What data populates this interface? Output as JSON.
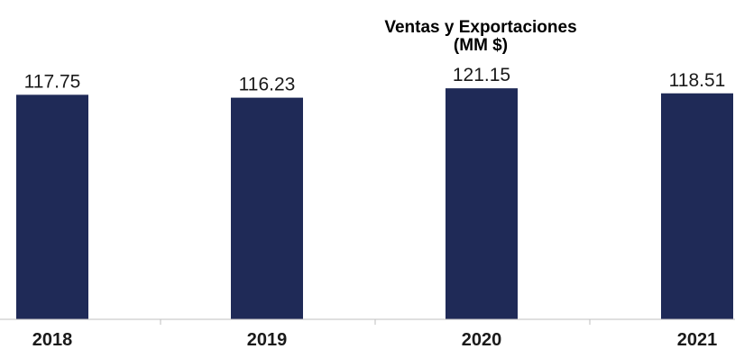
{
  "chart_data": {
    "type": "bar",
    "title": "Ventas y Exportaciones",
    "subtitle": "(MM $)",
    "categories": [
      "2018",
      "2019",
      "2020",
      "2021"
    ],
    "values": [
      117.75,
      116.23,
      121.15,
      118.51
    ],
    "value_labels": [
      "117.75",
      "116.23",
      "121.15",
      "118.51"
    ],
    "bar_color": "#1f2a57",
    "axis_color": "#bfbfbf",
    "ylim": [
      0,
      125
    ],
    "grid": false,
    "legend": "none"
  }
}
